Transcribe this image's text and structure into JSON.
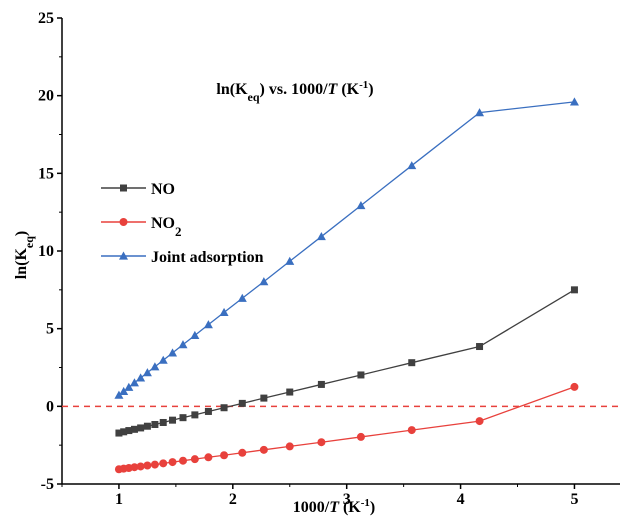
{
  "chart_data": {
    "type": "line",
    "xlabel": "1000/T (K⁻¹)",
    "ylabel": "ln(Keq)",
    "annotation": "ln(Keq)  vs.  1000/T (K⁻¹)",
    "xlim": [
      0.5,
      5.4
    ],
    "ylim": [
      -5,
      25
    ],
    "xticks": [
      1,
      2,
      3,
      4,
      5
    ],
    "yticks": [
      -5,
      0,
      5,
      10,
      15,
      20,
      25
    ],
    "tick_labels_x": [
      "1",
      "2",
      "3",
      "4",
      "5"
    ],
    "tick_labels_y": [
      "-5",
      "0",
      "5",
      "10",
      "15",
      "20",
      "25"
    ],
    "reference_line": {
      "y": 0,
      "style": "dashed",
      "color": "#e8413c"
    },
    "legend_position": "left-middle",
    "series": [
      {
        "name": "NO",
        "marker": "square",
        "color": "#404040",
        "x": [
          1.0,
          1.0417,
          1.087,
          1.1364,
          1.1905,
          1.25,
          1.3158,
          1.3889,
          1.4706,
          1.5625,
          1.6667,
          1.7857,
          1.9231,
          2.0833,
          2.2727,
          2.5,
          2.7778,
          3.125,
          3.5714,
          4.1667,
          5.0
        ],
        "y": [
          -1.72,
          -1.64,
          -1.56,
          -1.48,
          -1.39,
          -1.28,
          -1.17,
          -1.04,
          -0.89,
          -0.73,
          -0.55,
          -0.33,
          -0.09,
          0.19,
          0.53,
          0.92,
          1.41,
          2.02,
          2.81,
          3.85,
          7.5
        ]
      },
      {
        "name": "NO2",
        "marker": "circle",
        "color": "#e8413c",
        "x": [
          1.0,
          1.0417,
          1.087,
          1.1364,
          1.1905,
          1.25,
          1.3158,
          1.3889,
          1.4706,
          1.5625,
          1.6667,
          1.7857,
          1.9231,
          2.0833,
          2.2727,
          2.5,
          2.7778,
          3.125,
          3.5714,
          4.1667,
          5.0
        ],
        "y": [
          -4.05,
          -4.01,
          -3.97,
          -3.92,
          -3.87,
          -3.81,
          -3.75,
          -3.67,
          -3.59,
          -3.5,
          -3.4,
          -3.28,
          -3.15,
          -2.99,
          -2.8,
          -2.58,
          -2.31,
          -1.97,
          -1.53,
          -0.95,
          1.25
        ]
      },
      {
        "name": "Joint adsorption",
        "marker": "triangle",
        "color": "#3a6fc0",
        "x": [
          1.0,
          1.0417,
          1.087,
          1.1364,
          1.1905,
          1.25,
          1.3158,
          1.3889,
          1.4706,
          1.5625,
          1.6667,
          1.7857,
          1.9231,
          2.0833,
          2.2727,
          2.5,
          2.7778,
          3.125,
          3.5714,
          4.1667,
          5.0
        ],
        "y": [
          0.72,
          0.96,
          1.23,
          1.52,
          1.83,
          2.17,
          2.55,
          2.97,
          3.44,
          3.97,
          4.57,
          5.26,
          6.05,
          6.96,
          8.03,
          9.34,
          10.93,
          12.93,
          15.5,
          18.91,
          19.6
        ]
      }
    ]
  }
}
